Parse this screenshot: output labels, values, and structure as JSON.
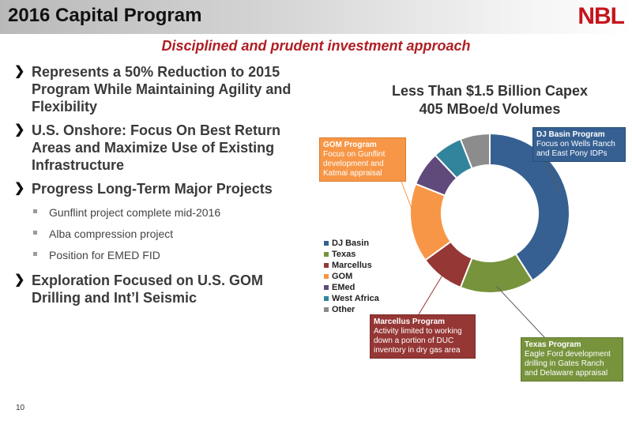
{
  "header": {
    "title": "2016 Capital Program",
    "logo": "NBL",
    "subtitle": "Disciplined and prudent investment approach"
  },
  "bullets": [
    {
      "text": "Represents a 50% Reduction to 2015 Program While Maintaining Agility and Flexibility"
    },
    {
      "text": "U.S. Onshore: Focus On Best Return Areas and Maximize Use of Existing Infrastructure"
    },
    {
      "text": "Progress Long-Term Major Projects"
    }
  ],
  "sub_bullets": [
    "Gunflint project complete mid-2016",
    "Alba compression project",
    "Position for EMED FID"
  ],
  "last_bullet": "Exploration Focused on U.S. GOM Drilling and Int’l Seismic",
  "chart_data": {
    "type": "pie",
    "title_line1": "Less Than $1.5 Billion Capex",
    "title_line2": "405 MBoe/d Volumes",
    "categories": [
      "DJ Basin",
      "Texas",
      "Marcellus",
      "GOM",
      "EMed",
      "West Africa",
      "Other"
    ],
    "values": [
      41,
      15,
      9,
      16,
      7,
      6,
      6
    ],
    "colors": [
      "#366092",
      "#77933c",
      "#953735",
      "#f79646",
      "#604a7b",
      "#31849b",
      "#8c8c8c"
    ],
    "legend_position": "left"
  },
  "callouts": {
    "dj": {
      "head": "DJ Basin Program",
      "body": "Focus on Wells Ranch and East Pony IDPs"
    },
    "gom": {
      "head": "GOM Program",
      "body": "Focus on Gunflint development and Katmai appraisal"
    },
    "marcellus": {
      "head": "Marcellus Program",
      "body": "Activity limited to working down a portion of DUC inventory in dry gas area"
    },
    "texas": {
      "head": "Texas Program",
      "body": "Eagle Ford development drilling in Gates Ranch and Delaware appraisal"
    }
  },
  "footer": {
    "page_number": "10"
  }
}
